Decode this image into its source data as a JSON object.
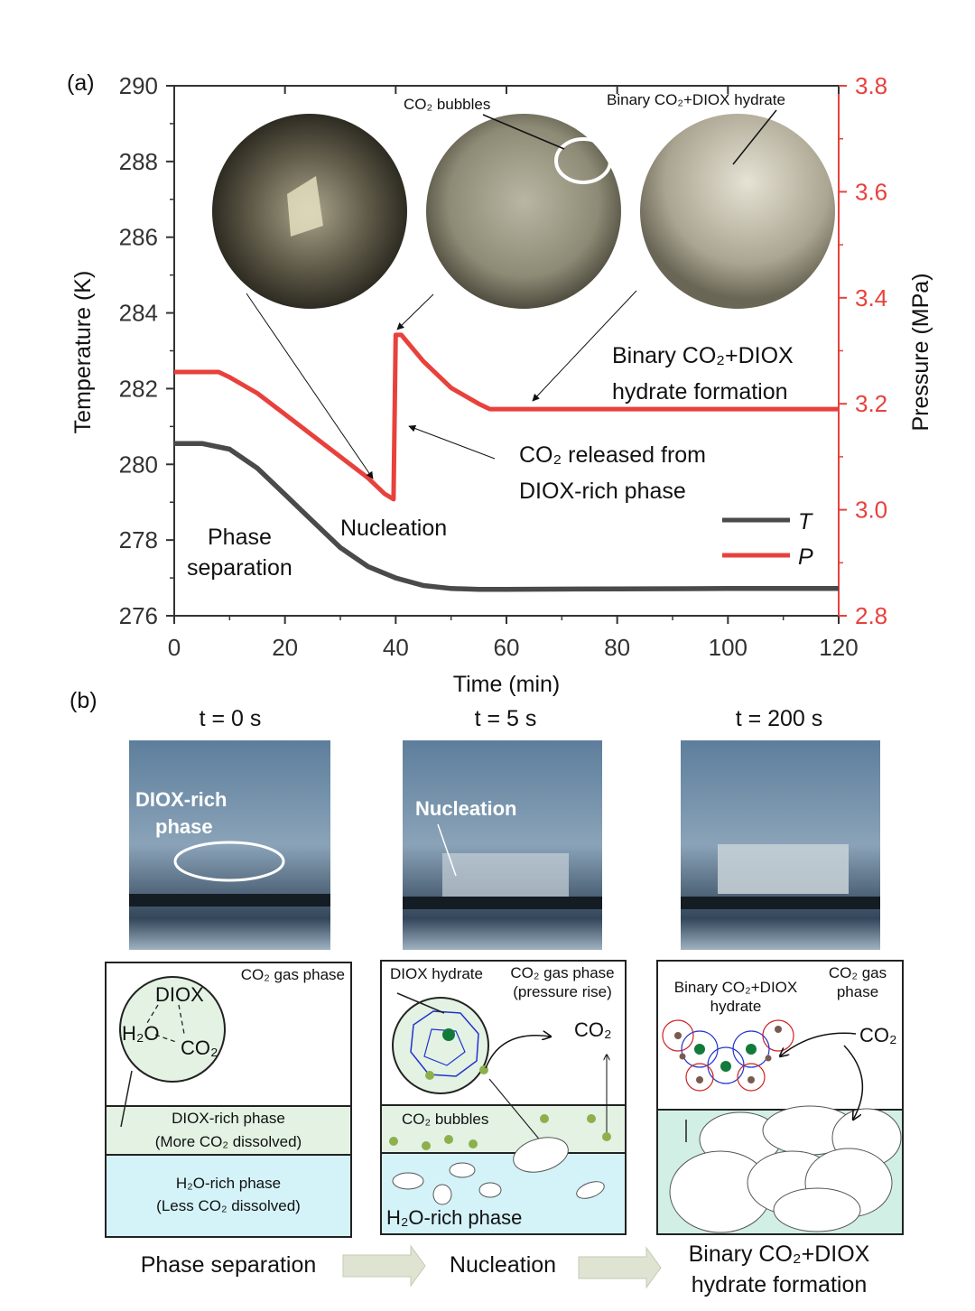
{
  "panel_a_label": "(a)",
  "panel_b_label": "(b)",
  "colors": {
    "T": "#4a4a4a",
    "P": "#e8413c",
    "dilute_phase": "#e3f2e3",
    "water_phase": "#d3f3f8",
    "cage_blue": "#2233cc",
    "cage_red": "#cc2222"
  },
  "chart_data": {
    "type": "line",
    "xlabel": "Time (min)",
    "ylabel": "Temperature (K)",
    "y2label": "Pressure (MPa)",
    "xlim": [
      0,
      120
    ],
    "ylim": [
      276,
      290
    ],
    "y2lim": [
      2.8,
      3.8
    ],
    "xticks": [
      "0",
      "20",
      "40",
      "60",
      "80",
      "100",
      "120"
    ],
    "yticks": [
      "276",
      "278",
      "280",
      "282",
      "284",
      "286",
      "288",
      "290"
    ],
    "y2ticks": [
      "2.8",
      "3.0",
      "3.2",
      "3.4",
      "3.6",
      "3.8"
    ],
    "grid": false,
    "legend_placement": "right",
    "series": [
      {
        "name": "T",
        "axis": "left",
        "color": "#4a4a4a",
        "x": [
          0,
          5,
          10,
          15,
          20,
          25,
          30,
          35,
          40,
          45,
          50,
          55,
          60,
          80,
          100,
          120
        ],
        "y": [
          280.55,
          280.55,
          280.4,
          279.9,
          279.2,
          278.5,
          277.8,
          277.3,
          277.0,
          276.8,
          276.72,
          276.7,
          276.7,
          276.71,
          276.72,
          276.72
        ]
      },
      {
        "name": "P",
        "axis": "right",
        "color": "#e8413c",
        "x": [
          0,
          8,
          10,
          15,
          20,
          25,
          30,
          35,
          38,
          39.6,
          40,
          41,
          45,
          50,
          55,
          57,
          120
        ],
        "y": [
          3.26,
          3.26,
          3.25,
          3.22,
          3.18,
          3.14,
          3.1,
          3.06,
          3.03,
          3.02,
          3.33,
          3.33,
          3.28,
          3.23,
          3.2,
          3.19,
          3.19
        ]
      }
    ],
    "annotations": {
      "bubbles": "CO₂ bubbles",
      "hydrate_photo": "Binary CO₂+DIOX hydrate",
      "formation_1": "Binary CO₂+DIOX",
      "formation_2": "hydrate formation",
      "released_1": "CO₂ released from",
      "released_2": "DIOX-rich phase",
      "nucleation": "Nucleation",
      "phase_1": "Phase",
      "phase_2": "separation"
    }
  },
  "panel_b": {
    "times": [
      "t = 0 s",
      "t = 5 s",
      "t = 200 s"
    ],
    "photo1_label_1": "DIOX-rich",
    "photo1_label_2": "phase",
    "photo2_label": "Nucleation",
    "box1": {
      "gas": "CO₂ gas phase",
      "diox": "DIOX",
      "h2o": "H₂O",
      "co2": "CO₂",
      "mid_1": "DIOX-rich phase",
      "mid_2": "(More CO₂ dissolved)",
      "low_1": "H₂O-rich phase",
      "low_2": "(Less CO₂ dissolved)"
    },
    "box2": {
      "hydrate": "DIOX hydrate",
      "gas_1": "CO₂ gas phase",
      "gas_2": "(pressure rise)",
      "co2": "CO₂",
      "bubbles": "CO₂ bubbles",
      "low": "H₂O-rich phase"
    },
    "box3": {
      "hydrate_1": "Binary CO₂+DIOX",
      "hydrate_2": "hydrate",
      "gas_1": "CO₂ gas",
      "gas_2": "phase",
      "co2": "CO₂"
    },
    "stages": [
      "Phase separation",
      "Nucleation",
      "Binary CO₂+DIOX",
      "hydrate formation"
    ]
  }
}
